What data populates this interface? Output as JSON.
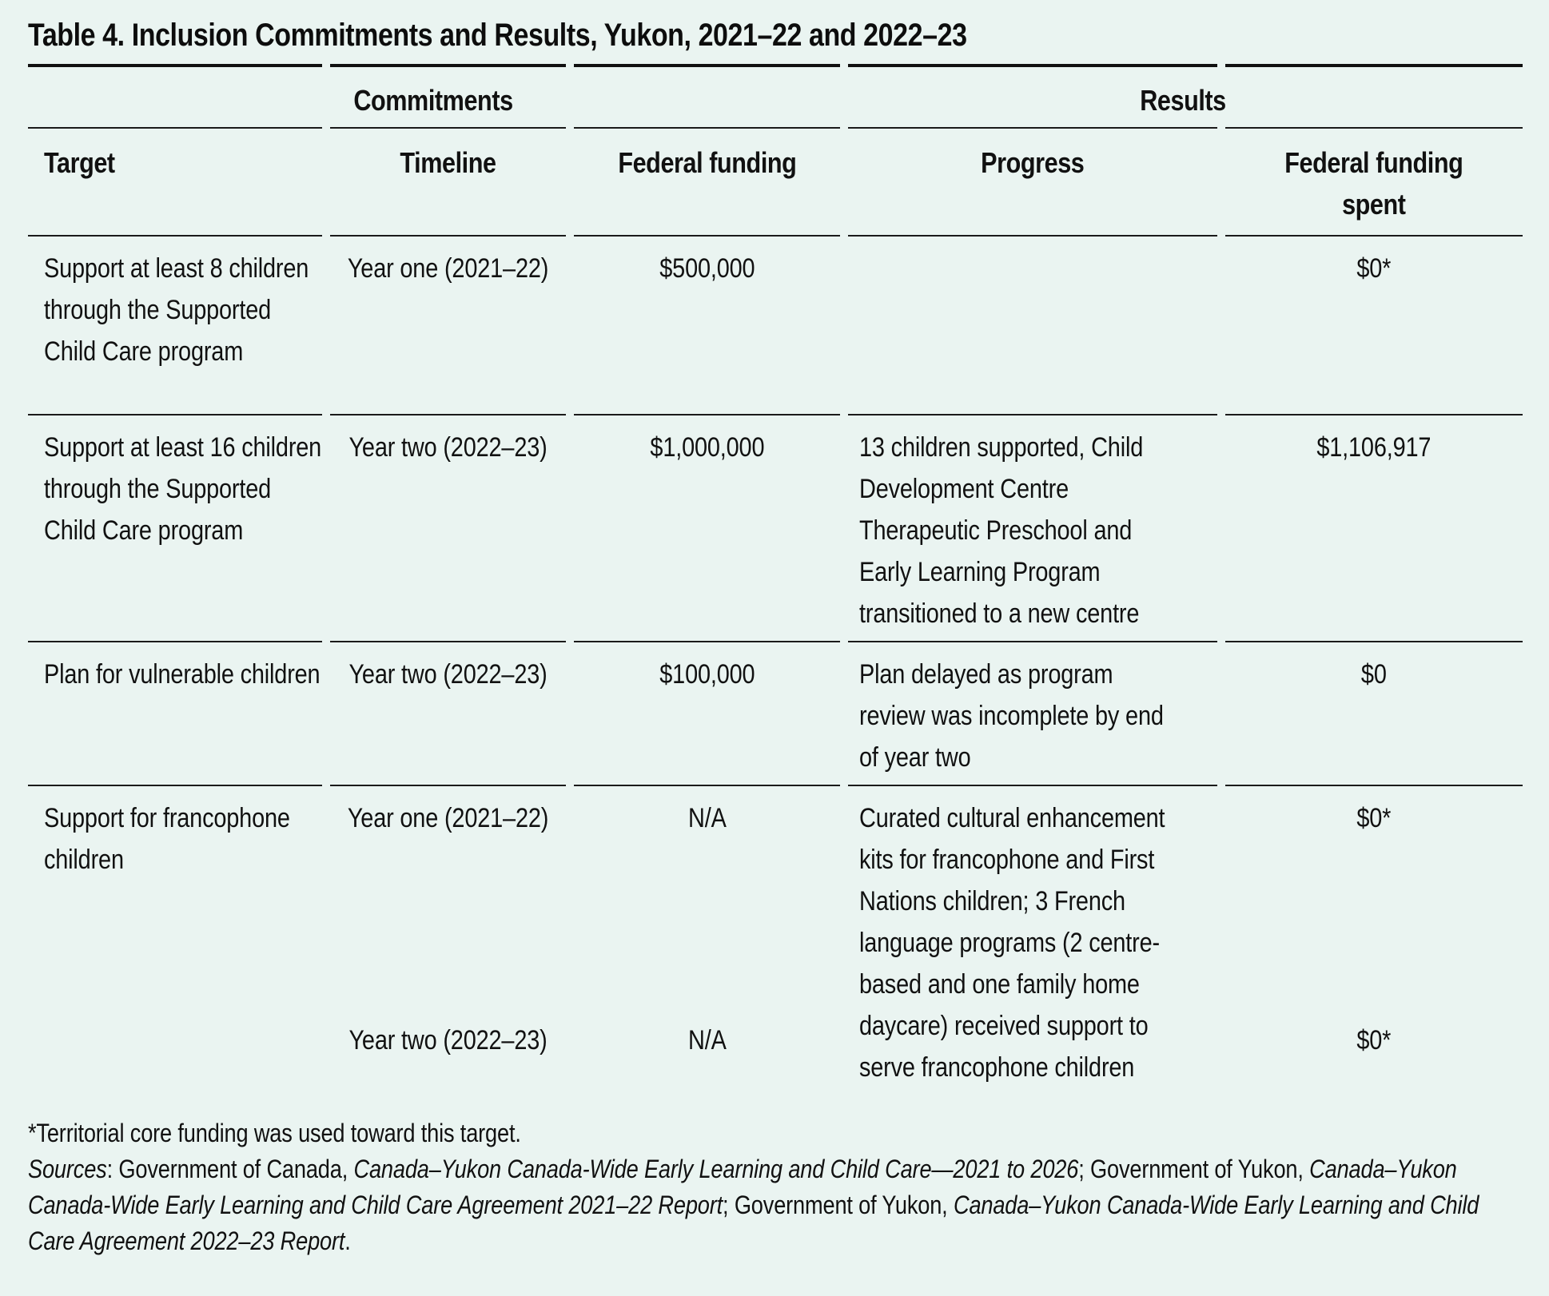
{
  "colors": {
    "background": "#EAF4F1",
    "text": "#111111",
    "rule": "#1A1A1A"
  },
  "table": {
    "title": "Table 4. Inclusion Commitments and Results, Yukon, 2021–22 and 2022–23",
    "group_headers": [
      "Commitments",
      "Results"
    ],
    "columns": [
      "Target",
      "Timeline",
      "Federal funding",
      "Progress",
      "Federal funding spent"
    ],
    "rows": [
      {
        "target": "Support at least 8 children through the Supported Child Care program",
        "timeline": "Year one (2021–22)",
        "federal_funding": "$500,000",
        "progress": "",
        "funding_spent": "$0*"
      },
      {
        "target": "Support at least 16 children through the Supported Child Care program",
        "timeline": "Year two (2022–23)",
        "federal_funding": "$1,000,000",
        "progress": "13 children supported, Child Development Centre Therapeutic Preschool and Early Learning Program transitioned to a new centre",
        "funding_spent": "$1,106,917"
      },
      {
        "target": "Plan for vulnerable children",
        "timeline": "Year two (2022–23)",
        "federal_funding": "$100,000",
        "progress": "Plan delayed as program review was incomplete by end of year two",
        "funding_spent": "$0"
      },
      {
        "target": "Support for francophone children",
        "timeline_year_one": "Year one (2021–22)",
        "timeline_year_two": "Year two (2022–23)",
        "federal_funding_year_one": "N/A",
        "federal_funding_year_two": "N/A",
        "progress": "Curated cultural enhancement kits for francophone and First Nations children; 3 French language programs (2 centre-based and one family home daycare) received support to serve francophone children",
        "funding_spent_year_one": "$0*",
        "funding_spent_year_two": "$0*"
      }
    ],
    "footnote": "*Territorial core funding was used toward this target.",
    "sources": [
      {
        "text": "Sources",
        "italic": true
      },
      {
        "text": ": Government of Canada, ",
        "italic": false
      },
      {
        "text": "Canada–Yukon Canada-Wide Early Learning and Child Care—2021 to 2026",
        "italic": true
      },
      {
        "text": "; Government of Yukon, ",
        "italic": false
      },
      {
        "text": "Canada–Yukon Canada-Wide Early Learning and Child Care Agreement 2021–22 Report",
        "italic": true
      },
      {
        "text": "; Government of Yukon, ",
        "italic": false
      },
      {
        "text": "Canada–Yukon Canada-Wide Early Learning and Child Care Agreement 2022–23 Report",
        "italic": true
      },
      {
        "text": ".",
        "italic": false
      }
    ]
  }
}
